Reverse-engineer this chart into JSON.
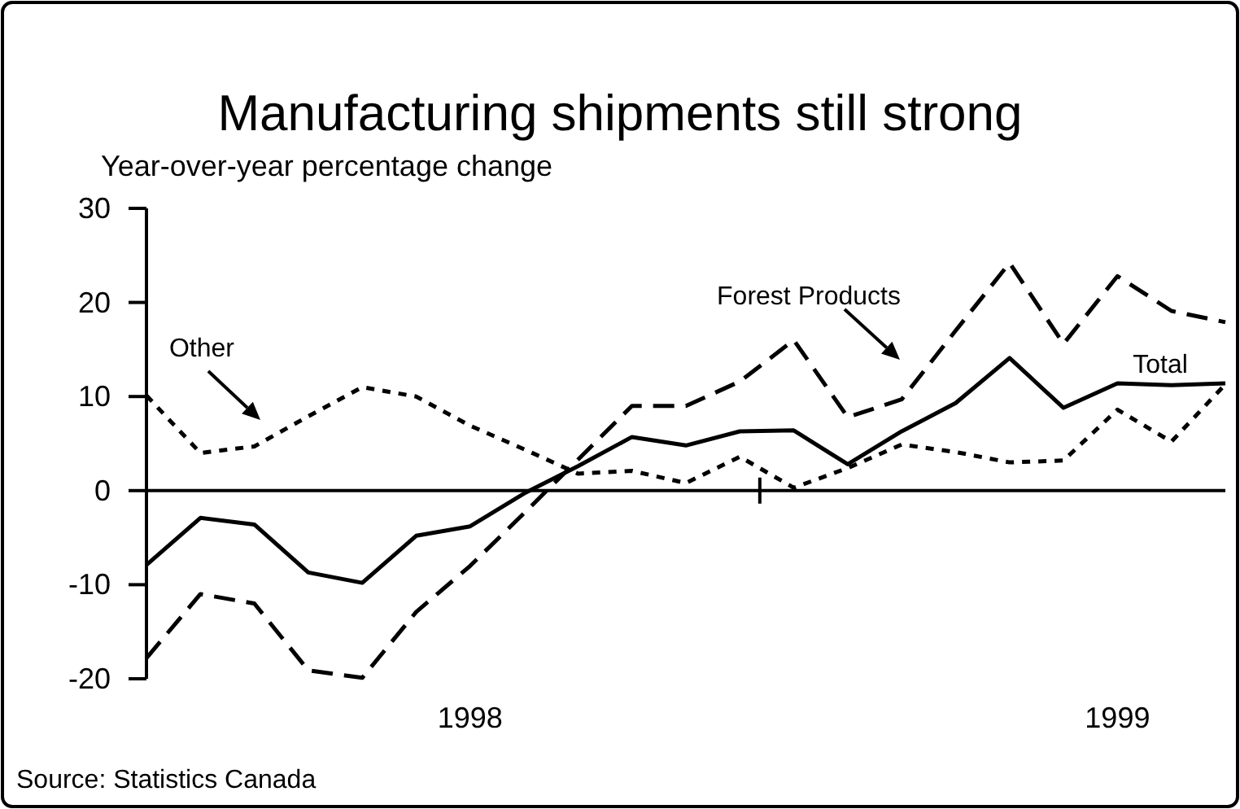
{
  "chart_data": {
    "type": "line",
    "title": "Manufacturing shipments still strong",
    "ylabel": "Year-over-year percentage change",
    "categories": [
      null,
      null,
      null,
      null,
      null,
      null,
      "1998",
      null,
      null,
      null,
      null,
      null,
      null,
      null,
      null,
      null,
      null,
      null,
      "1999",
      null,
      null
    ],
    "ylim": [
      -20,
      30
    ],
    "yticks": [
      -20,
      -10,
      0,
      10,
      20,
      30
    ],
    "series": [
      {
        "name": "Total",
        "color": "#000000",
        "line_style": "solid",
        "values": [
          -7.9,
          -2.9,
          -3.6,
          -8.7,
          -9.8,
          -4.8,
          -3.8,
          -0.3,
          2.6,
          5.7,
          4.8,
          6.3,
          6.4,
          2.8,
          6.3,
          9.3,
          14.1,
          8.8,
          11.4,
          11.2,
          11.4
        ]
      },
      {
        "name": "Forest Products",
        "color": "#000000",
        "line_style": "dashed",
        "values": [
          -17.8,
          -11.0,
          -12.0,
          -19.1,
          -19.9,
          -12.9,
          -8.0,
          -2.4,
          3.3,
          9.0,
          9.0,
          11.6,
          16.0,
          7.8,
          9.7,
          17.0,
          24.2,
          15.6,
          22.8,
          19.1,
          17.9
        ]
      },
      {
        "name": "Other",
        "color": "#000000",
        "line_style": "dotted",
        "values": [
          10.1,
          4.0,
          4.7,
          7.9,
          11.0,
          10.0,
          6.9,
          4.4,
          1.8,
          2.1,
          0.8,
          3.6,
          0.3,
          2.4,
          4.9,
          4.1,
          3.0,
          3.2,
          8.6,
          5.2,
          11.3
        ]
      }
    ],
    "annotations": [
      "Source: Statistics Canada"
    ]
  }
}
